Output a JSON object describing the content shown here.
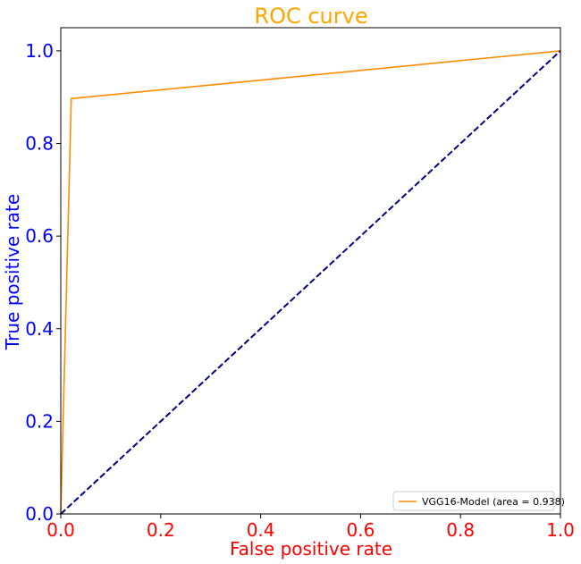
{
  "chart_data": {
    "type": "line",
    "title": "ROC curve",
    "xlabel": "False positive rate",
    "ylabel": "True positive rate",
    "xlim": [
      0.0,
      1.0
    ],
    "ylim": [
      0.0,
      1.05
    ],
    "xticks": [
      "0.0",
      "0.2",
      "0.4",
      "0.6",
      "0.8",
      "1.0"
    ],
    "yticks": [
      "0.0",
      "0.2",
      "0.4",
      "0.6",
      "0.8",
      "1.0"
    ],
    "grid": false,
    "legend_position": "lower-right",
    "colors": {
      "title": "#ffa500",
      "xlabel": "#ff0000",
      "xticks": "#ff0000",
      "ylabel": "#0000ff",
      "yticks": "#0000ff"
    },
    "series": [
      {
        "name": "VGG16-Model (area = 0.938)",
        "style": "solid",
        "color": "#ff8c00",
        "x": [
          0.0,
          0.021,
          1.0
        ],
        "y": [
          0.0,
          0.897,
          1.0
        ]
      },
      {
        "style": "dashed",
        "color": "#000080",
        "x": [
          0.0,
          1.0
        ],
        "y": [
          0.0,
          1.0
        ]
      }
    ]
  }
}
